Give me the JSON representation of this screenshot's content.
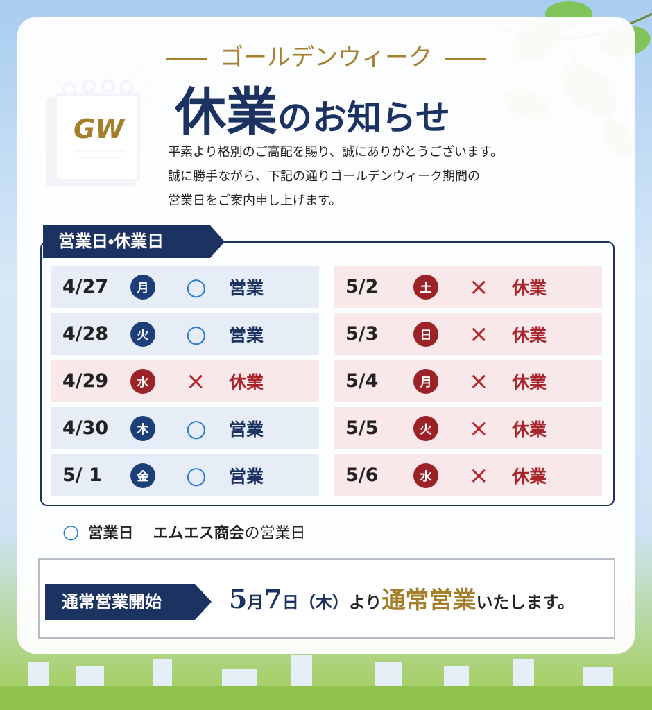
{
  "header": {
    "subtitle": "ゴールデンウィーク",
    "title_main": "休業",
    "title_rest": "のお知らせ",
    "icon_text": "GW"
  },
  "intro": [
    "平素より格別のご高配を賜り、誠にありがとうございます。",
    "誠に勝手ながら、下記の通りゴールデンウィーク期間の",
    "営業日をご案内申し上げます。"
  ],
  "schedule": {
    "label": "営業日・休業日",
    "columns": [
      [
        {
          "date": "4/27",
          "day": "月",
          "mark": "○",
          "status": "営業"
        },
        {
          "date": "4/28",
          "day": "火",
          "mark": "○",
          "status": "営業"
        },
        {
          "date": "4/29",
          "day": "水",
          "mark": "×",
          "status": "休業"
        },
        {
          "date": "4/30",
          "day": "木",
          "mark": "○",
          "status": "営業"
        },
        {
          "date": "5/ 1",
          "day": "金",
          "mark": "○",
          "status": "営業"
        }
      ],
      [
        {
          "date": "5/2",
          "day": "土",
          "mark": "×",
          "status": "休業"
        },
        {
          "date": "5/3",
          "day": "日",
          "mark": "×",
          "status": "休業"
        },
        {
          "date": "5/4",
          "day": "月",
          "mark": "×",
          "status": "休業"
        },
        {
          "date": "5/5",
          "day": "火",
          "mark": "×",
          "status": "休業"
        },
        {
          "date": "5/6",
          "day": "水",
          "mark": "×",
          "status": "休業"
        }
      ]
    ]
  },
  "legend": {
    "mark": "○",
    "label": "営業日",
    "company": "エムエス商会",
    "suffix": "の営業日"
  },
  "footer": {
    "label": "通常営業開始",
    "month": "5",
    "month_unit": "月",
    "day": "7",
    "day_unit": "日",
    "weekday": "（木）",
    "from": "より",
    "highlight": "通常営業",
    "rest": "いたします。"
  }
}
